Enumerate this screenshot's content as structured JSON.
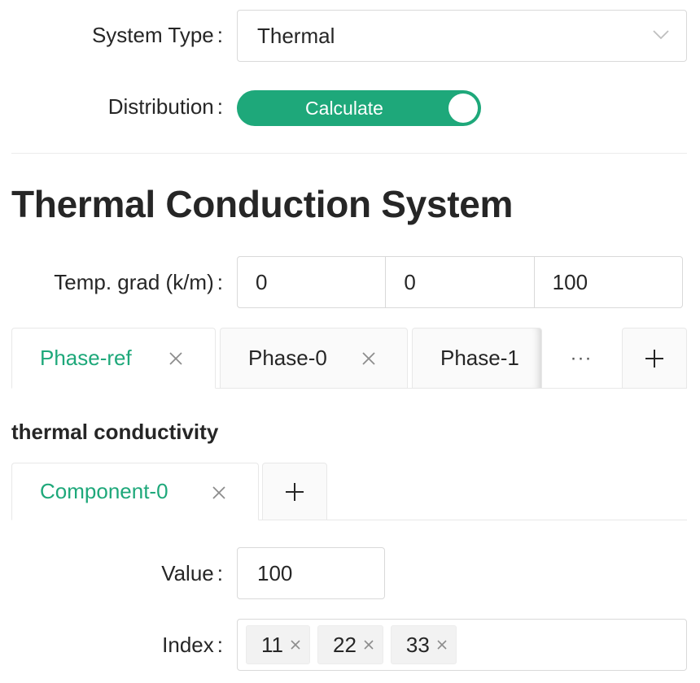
{
  "form": {
    "system_type": {
      "label": "System Type",
      "colon": ":",
      "value": "Thermal"
    },
    "distribution": {
      "label": "Distribution",
      "colon": ":",
      "switch_text": "Calculate",
      "on": true
    }
  },
  "section": {
    "title": "Thermal Conduction System",
    "temp_grad": {
      "label": "Temp. grad (k/m)",
      "colon": ":",
      "values": [
        "0",
        "0",
        "100"
      ]
    }
  },
  "phase_tabs": [
    {
      "label": "Phase-ref",
      "active": true,
      "closable": true
    },
    {
      "label": "Phase-0",
      "active": false,
      "closable": true
    },
    {
      "label": "Phase-1",
      "active": false,
      "closable": false
    }
  ],
  "phase_more": "···",
  "property": {
    "title": "thermal conductivity"
  },
  "component_tabs": [
    {
      "label": "Component-0",
      "active": true,
      "closable": true
    }
  ],
  "component": {
    "value": {
      "label": "Value",
      "colon": ":",
      "value": "100"
    },
    "index": {
      "label": "Index",
      "colon": ":",
      "tags": [
        "11",
        "22",
        "33"
      ]
    }
  },
  "colors": {
    "accent": "#1ea87a",
    "border": "#d9d9d9",
    "tab_bg": "#fafafa"
  },
  "icons": {
    "select_arrow": "chevron-down-icon",
    "close": "close-icon",
    "add": "plus-icon"
  }
}
